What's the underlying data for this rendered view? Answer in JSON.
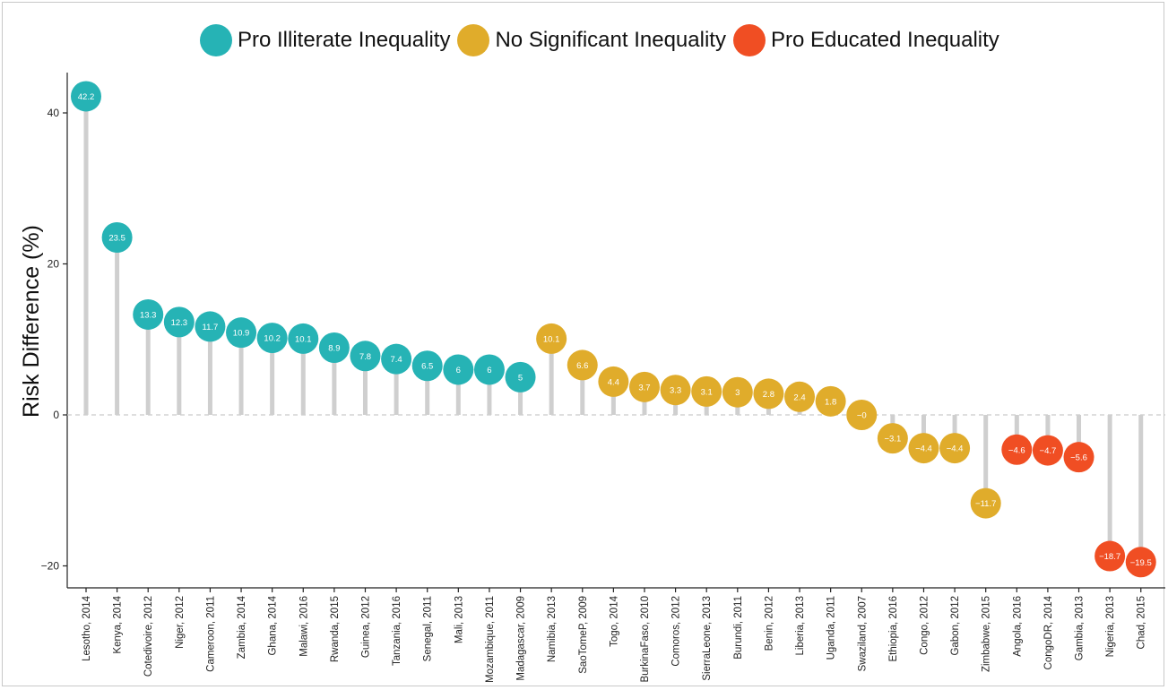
{
  "chart_data": {
    "type": "lollipop",
    "xlabel": "",
    "ylabel": "Risk Difference (%)",
    "ylim": [
      -23,
      45
    ],
    "yticks": [
      -20,
      0,
      20,
      40
    ],
    "ytick_labels": [
      "−20",
      "0",
      "20",
      "40"
    ],
    "legend": {
      "position": "top",
      "entries": [
        {
          "label": "Pro Illiterate Inequality",
          "color": "#26b3b5"
        },
        {
          "label": "No Significant Inequality",
          "color": "#e0ac2b"
        },
        {
          "label": "Pro Educated Inequality",
          "color": "#f04e23"
        }
      ]
    },
    "points": [
      {
        "category": "Lesotho, 2014",
        "value": 42.2,
        "label": "42.2",
        "group": 0
      },
      {
        "category": "Kenya, 2014",
        "value": 23.5,
        "label": "23.5",
        "group": 0
      },
      {
        "category": "Cotedivoire, 2012",
        "value": 13.3,
        "label": "13.3",
        "group": 0
      },
      {
        "category": "Niger, 2012",
        "value": 12.3,
        "label": "12.3",
        "group": 0
      },
      {
        "category": "Cameroon, 2011",
        "value": 11.7,
        "label": "11.7",
        "group": 0
      },
      {
        "category": "Zambia, 2014",
        "value": 10.9,
        "label": "10.9",
        "group": 0
      },
      {
        "category": "Ghana, 2014",
        "value": 10.2,
        "label": "10.2",
        "group": 0
      },
      {
        "category": "Malawi, 2016",
        "value": 10.1,
        "label": "10.1",
        "group": 0
      },
      {
        "category": "Rwanda, 2015",
        "value": 8.9,
        "label": "8.9",
        "group": 0
      },
      {
        "category": "Guinea, 2012",
        "value": 7.8,
        "label": "7.8",
        "group": 0
      },
      {
        "category": "Tanzania, 2016",
        "value": 7.4,
        "label": "7.4",
        "group": 0
      },
      {
        "category": "Senegal, 2011",
        "value": 6.5,
        "label": "6.5",
        "group": 0
      },
      {
        "category": "Mali, 2013",
        "value": 6,
        "label": "6",
        "group": 0
      },
      {
        "category": "Mozambique, 2011",
        "value": 6,
        "label": "6",
        "group": 0
      },
      {
        "category": "Madagascar, 2009",
        "value": 5,
        "label": "5",
        "group": 0
      },
      {
        "category": "Namibia, 2013",
        "value": 10.1,
        "label": "10.1",
        "group": 1
      },
      {
        "category": "SaoTomeP, 2009",
        "value": 6.6,
        "label": "6.6",
        "group": 1
      },
      {
        "category": "Togo, 2014",
        "value": 4.4,
        "label": "4.4",
        "group": 1
      },
      {
        "category": "BurkinaFaso, 2010",
        "value": 3.7,
        "label": "3.7",
        "group": 1
      },
      {
        "category": "Comoros, 2012",
        "value": 3.3,
        "label": "3.3",
        "group": 1
      },
      {
        "category": "SierraLeone, 2013",
        "value": 3.1,
        "label": "3.1",
        "group": 1
      },
      {
        "category": "Burundi, 2011",
        "value": 3,
        "label": "3",
        "group": 1
      },
      {
        "category": "Benin, 2012",
        "value": 2.8,
        "label": "2.8",
        "group": 1
      },
      {
        "category": "Liberia, 2013",
        "value": 2.4,
        "label": "2.4",
        "group": 1
      },
      {
        "category": "Uganda, 2011",
        "value": 1.8,
        "label": "1.8",
        "group": 1
      },
      {
        "category": "Swaziland, 2007",
        "value": 0,
        "label": "−0",
        "group": 1
      },
      {
        "category": "Ethiopia, 2016",
        "value": -3.1,
        "label": "−3.1",
        "group": 1
      },
      {
        "category": "Congo, 2012",
        "value": -4.4,
        "label": "−4.4",
        "group": 1
      },
      {
        "category": "Gabon, 2012",
        "value": -4.4,
        "label": "−4.4",
        "group": 1
      },
      {
        "category": "Zimbabwe, 2015",
        "value": -11.7,
        "label": "−11.7",
        "group": 1
      },
      {
        "category": "Angola, 2016",
        "value": -4.6,
        "label": "−4.6",
        "group": 2
      },
      {
        "category": "CongoDR, 2014",
        "value": -4.7,
        "label": "−4.7",
        "group": 2
      },
      {
        "category": "Gambia, 2013",
        "value": -5.6,
        "label": "−5.6",
        "group": 2
      },
      {
        "category": "Nigeria, 2013",
        "value": -18.7,
        "label": "−18.7",
        "group": 2
      },
      {
        "category": "Chad, 2015",
        "value": -19.5,
        "label": "−19.5",
        "group": 2
      }
    ],
    "grid": false,
    "zero_line": "dashed"
  }
}
